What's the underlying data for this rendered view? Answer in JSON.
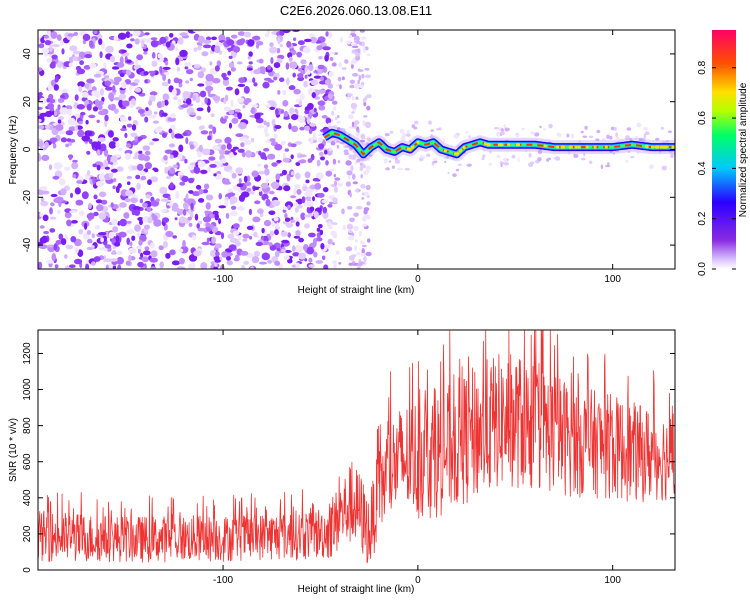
{
  "figure": {
    "title": "C2E6.2026.060.13.08.E11"
  },
  "colorbar": {
    "label": "Normalized spectral amplitude",
    "ticks": [
      "0.0",
      "0.2",
      "0.4",
      "0.6",
      "0.8"
    ],
    "tick_values": [
      0.0,
      0.2,
      0.4,
      0.6,
      0.8
    ],
    "range": [
      0,
      0.95
    ],
    "colors": [
      "#ffffff",
      "#d9c2ff",
      "#8a2be2",
      "#2a00ff",
      "#00c8ff",
      "#00ff66",
      "#b4ff00",
      "#ffe000",
      "#ff5000",
      "#ff0066"
    ]
  },
  "chart_data": [
    {
      "type": "heatmap",
      "title": "C2E6.2026.060.13.08.E11",
      "xlabel": "Height of straight line (km)",
      "ylabel": "Frequency (Hz)",
      "xlim": [
        -195,
        132
      ],
      "ylim": [
        -50,
        50
      ],
      "x_ticks": [
        -100,
        0,
        100
      ],
      "x_tick_labels": [
        "-100",
        "0",
        "100"
      ],
      "y_ticks": [
        -40,
        -20,
        0,
        20,
        40
      ],
      "y_tick_labels": [
        "-40",
        "-20",
        "0",
        "20",
        "40"
      ],
      "noise_region_x": [
        -195,
        -45
      ],
      "transition_x": [
        -45,
        -25
      ],
      "signal_trace": {
        "x": [
          -48,
          -44,
          -40,
          -36,
          -32,
          -28,
          -24,
          -20,
          -16,
          -12,
          -8,
          -4,
          0,
          4,
          8,
          12,
          16,
          20,
          24,
          28,
          32,
          36,
          40,
          50,
          60,
          70,
          80,
          90,
          100,
          110,
          120,
          132
        ],
        "y": [
          5,
          7,
          6,
          4,
          2,
          -2,
          1,
          3,
          0,
          -1,
          1,
          0,
          3,
          2,
          3,
          0,
          -1,
          -2,
          1,
          2,
          3,
          2,
          2,
          2,
          2,
          1,
          1,
          1,
          1,
          2,
          1,
          1
        ]
      }
    },
    {
      "type": "line",
      "xlabel": "Height of straight line (km)",
      "ylabel": "SNR (10 * v/v)",
      "xlim": [
        -195,
        132
      ],
      "ylim": [
        0,
        1330
      ],
      "x_ticks": [
        -100,
        0,
        100
      ],
      "x_tick_labels": [
        "-100",
        "0",
        "100"
      ],
      "y_ticks": [
        0,
        200,
        400,
        600,
        800,
        1000,
        1200
      ],
      "y_tick_labels": [
        "0",
        "200",
        "400",
        "600",
        "800",
        "1000",
        "1200"
      ],
      "color": "#ee3333",
      "series": [
        {
          "name": "SNR",
          "x": [
            -195,
            -180,
            -160,
            -140,
            -120,
            -100,
            -80,
            -60,
            -45,
            -40,
            -35,
            -30,
            -25,
            -20,
            -15,
            -10,
            -5,
            0,
            10,
            20,
            30,
            40,
            50,
            60,
            70,
            80,
            90,
            100,
            110,
            120,
            132
          ],
          "mean": [
            190,
            180,
            175,
            170,
            175,
            175,
            185,
            195,
            210,
            300,
            360,
            330,
            200,
            430,
            550,
            600,
            620,
            620,
            640,
            700,
            760,
            820,
            830,
            790,
            760,
            720,
            700,
            680,
            650,
            640,
            620
          ],
          "spread": [
            140,
            140,
            130,
            130,
            130,
            130,
            130,
            140,
            150,
            200,
            220,
            230,
            200,
            250,
            280,
            300,
            320,
            340,
            350,
            360,
            380,
            380,
            380,
            360,
            340,
            320,
            300,
            290,
            280,
            260,
            240
          ]
        }
      ]
    }
  ]
}
